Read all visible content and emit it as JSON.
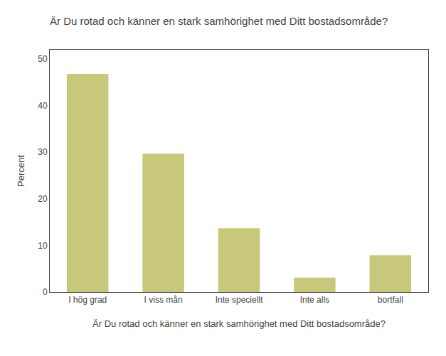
{
  "chart_data": {
    "type": "bar",
    "title": "Är Du rotad och känner en stark samhörighet med Ditt bostadsområde?",
    "xlabel": "Är Du rotad och känner en stark samhörighet med Ditt bostadsområde?",
    "ylabel": "Percent",
    "categories": [
      "I hög grad",
      "I viss mån",
      "Inte speciellt",
      "Inte alls",
      "bortfall"
    ],
    "values": [
      46.8,
      29.7,
      13.7,
      3.1,
      7.9
    ],
    "color": "#c8c87a",
    "ylim": [
      0,
      52
    ],
    "yticks": [
      0,
      10,
      20,
      30,
      40,
      50
    ],
    "grid": false
  }
}
